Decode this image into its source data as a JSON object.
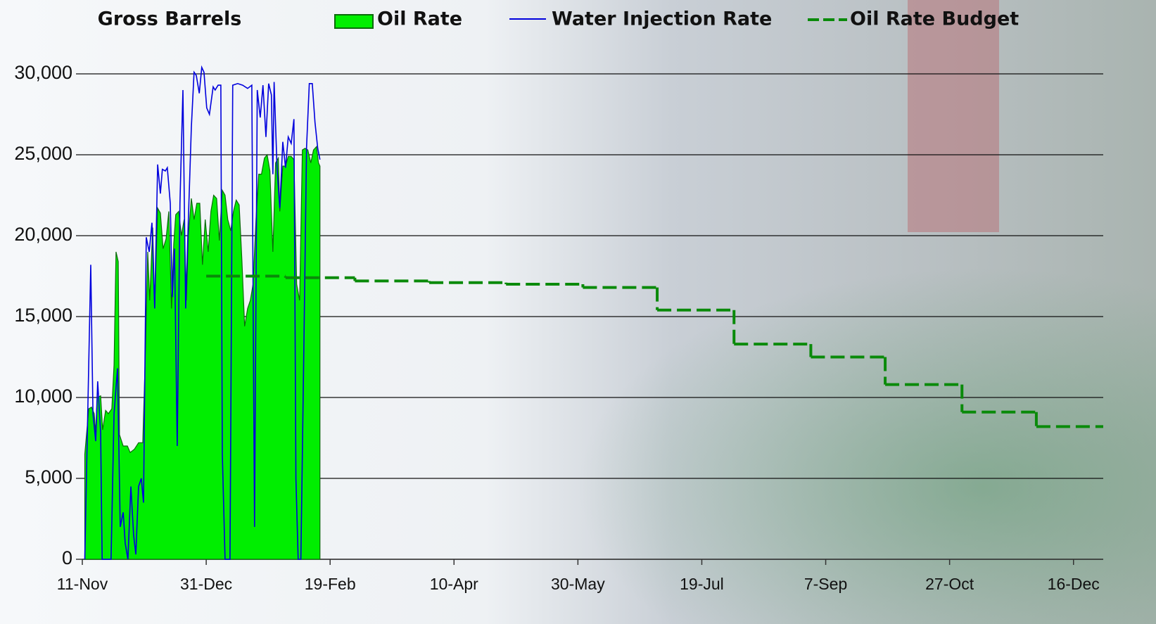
{
  "chart_data": {
    "type": "line",
    "title": "Gross Barrels",
    "legend": "top",
    "grid": true,
    "xlim": [
      0,
      412
    ],
    "xticks": [
      {
        "value": 0,
        "label": "11-Nov"
      },
      {
        "value": 50,
        "label": "31-Dec"
      },
      {
        "value": 100,
        "label": "19-Feb"
      },
      {
        "value": 150,
        "label": "10-Apr"
      },
      {
        "value": 200,
        "label": "30-May"
      },
      {
        "value": 250,
        "label": "19-Jul"
      },
      {
        "value": 300,
        "label": "7-Sep"
      },
      {
        "value": 350,
        "label": "27-Oct"
      },
      {
        "value": 400,
        "label": "16-Dec"
      }
    ],
    "ylim": [
      0,
      30000
    ],
    "yticks": [
      0,
      {
        "value": 5000,
        "label": "5,000"
      },
      {
        "value": 10000,
        "label": "10,000"
      },
      {
        "value": 15000,
        "label": "15,000"
      },
      {
        "value": 20000,
        "label": "20,000"
      },
      {
        "value": 25000,
        "label": "25,000"
      },
      {
        "value": 30000,
        "label": "30,000"
      }
    ],
    "series": [
      {
        "name": "Oil Rate",
        "type": "area",
        "color": "#00ee00",
        "edge": "#0a6a0a",
        "x": [
          1,
          2.6,
          3.7,
          4.8,
          5.4,
          6,
          7.4,
          8.2,
          9.4,
          10.5,
          11.9,
          12.8,
          13.6,
          14.5,
          15,
          16.5,
          18.2,
          19.3,
          21,
          22.7,
          24.4,
          25.5,
          26.4,
          27.2,
          28.4,
          29.2,
          30.4,
          31.5,
          32.6,
          33.8,
          34.9,
          36,
          36.9,
          37.7,
          38.9,
          40,
          41.1,
          42,
          42.8,
          44,
          45.1,
          46.2,
          47.4,
          48.5,
          49.6,
          50.8,
          51.9,
          53,
          54.2,
          55.3,
          56.5,
          57.6,
          58.7,
          59.9,
          61,
          62.1,
          63.3,
          64.4,
          65.5,
          66.7,
          67.8,
          68.9,
          70.1,
          71.2,
          72.3,
          73.5,
          74.6,
          75.7,
          76.9,
          78,
          79.1,
          79.7,
          80.9,
          82,
          83.1,
          84.3,
          85.4,
          86.5,
          87.7,
          88.8,
          89.9,
          91,
          92.2,
          93.3,
          94.5,
          95.3,
          95.9
        ],
        "values": [
          6500,
          9300,
          9400,
          9000,
          7800,
          10000,
          10100,
          8000,
          9200,
          9000,
          9300,
          12000,
          19000,
          18400,
          7700,
          7000,
          7000,
          6600,
          6800,
          7200,
          7200,
          13000,
          19000,
          16000,
          20500,
          15500,
          21700,
          21400,
          19200,
          19800,
          21500,
          15500,
          19500,
          21300,
          21500,
          20000,
          21000,
          16000,
          20000,
          22300,
          21000,
          22000,
          22000,
          18200,
          21000,
          19000,
          21500,
          22500,
          22300,
          19700,
          22800,
          22500,
          21000,
          20300,
          21500,
          22200,
          21900,
          18500,
          14400,
          15500,
          16000,
          17000,
          21000,
          23800,
          23800,
          24800,
          25000,
          24000,
          19000,
          24500,
          24800,
          21500,
          24300,
          24300,
          24900,
          24900,
          24700,
          17000,
          16000,
          25300,
          25400,
          25300,
          24500,
          25300,
          25500,
          24500,
          24300
        ]
      },
      {
        "name": "Water Injection Rate",
        "type": "line",
        "color": "#0000dd",
        "x": [
          1,
          3.4,
          4.3,
          5.4,
          6.2,
          7.4,
          8,
          11.6,
          12.8,
          14.2,
          15.3,
          16.5,
          17.3,
          18.4,
          19.6,
          20.7,
          21.6,
          22.7,
          23.8,
          24.7,
          25.8,
          27,
          28.1,
          29.2,
          30.4,
          31.5,
          32.3,
          33.5,
          34.3,
          35.5,
          36.3,
          37.2,
          38.3,
          39.4,
          40.6,
          41.7,
          42.8,
          44,
          45.1,
          46,
          47.2,
          48.2,
          49.1,
          50.2,
          51.3,
          52.8,
          53.6,
          54.8,
          55.9,
          56.5,
          57.6,
          59.6,
          60.7,
          62.7,
          64.7,
          66.7,
          68.4,
          69.5,
          70.6,
          71.8,
          72.9,
          74.1,
          75.2,
          76.3,
          76.9,
          77.4,
          78.6,
          79.7,
          80.9,
          82,
          83.1,
          84.3,
          85.4,
          86.2,
          87.1,
          88.2,
          89.4,
          90.5,
          91.6,
          92.8,
          93.9,
          95,
          95.9
        ],
        "values": [
          0,
          18200,
          9000,
          7300,
          11000,
          7800,
          0,
          0,
          9000,
          11800,
          2000,
          2900,
          1000,
          0,
          4500,
          1500,
          300,
          4500,
          5000,
          3500,
          19900,
          19000,
          20800,
          15500,
          24400,
          22600,
          24100,
          24000,
          24200,
          22000,
          16200,
          19200,
          7000,
          22000,
          29000,
          15500,
          21000,
          26700,
          30100,
          29900,
          28800,
          30400,
          30100,
          27900,
          27500,
          29200,
          29000,
          29300,
          29300,
          6500,
          0,
          0,
          29300,
          29400,
          29300,
          29100,
          29300,
          2000,
          29000,
          27300,
          29300,
          26100,
          29400,
          28700,
          23800,
          29500,
          24100,
          21700,
          25800,
          24200,
          26100,
          25700,
          27200,
          5000,
          0,
          0,
          13000,
          25500,
          29400,
          29400,
          27000,
          25400,
          24700
        ]
      },
      {
        "name": "Oil Rate Budget",
        "type": "step",
        "color": "#0a8a0a",
        "x": [
          50,
          82,
          110,
          140,
          171,
          202,
          232,
          263,
          294,
          324,
          355,
          385
        ],
        "values": [
          17500,
          17400,
          17200,
          17100,
          17000,
          16800,
          15400,
          13300,
          12500,
          10800,
          9100,
          8200
        ]
      }
    ]
  }
}
